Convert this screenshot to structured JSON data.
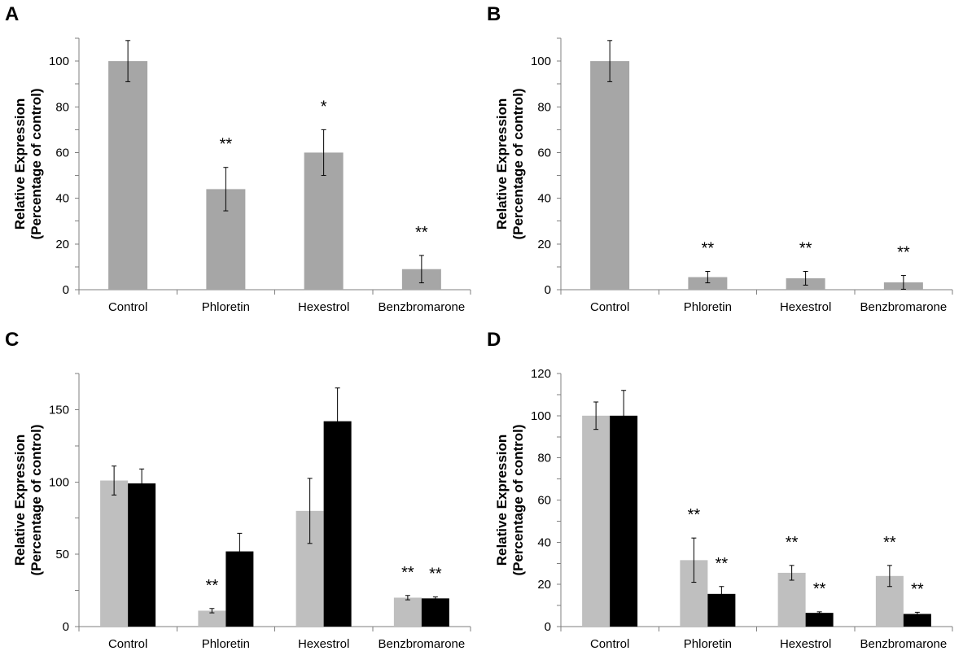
{
  "chart_data": [
    {
      "panel": "A",
      "type": "bar",
      "ylabel_line1": "Relative Expression",
      "ylabel_line2": "(Percentage of control)",
      "ylim": [
        0,
        110
      ],
      "yticks": [
        0,
        20,
        40,
        60,
        80,
        100
      ],
      "categories": [
        "Control",
        "Phloretin",
        "Hexestrol",
        "Benzbromarone"
      ],
      "series": [
        {
          "color": "#a6a6a6",
          "values": [
            100,
            44,
            60,
            9
          ],
          "errors": [
            9,
            9.5,
            10,
            6
          ],
          "significance": [
            "",
            "**",
            "*",
            "**"
          ]
        }
      ]
    },
    {
      "panel": "B",
      "type": "bar",
      "ylabel_line1": "Relative Expression",
      "ylabel_line2": "(Percentage of control)",
      "ylim": [
        0,
        110
      ],
      "yticks": [
        0,
        20,
        40,
        60,
        80,
        100
      ],
      "categories": [
        "Control",
        "Phloretin",
        "Hexestrol",
        "Benzbromarone"
      ],
      "series": [
        {
          "color": "#a6a6a6",
          "values": [
            100,
            5.5,
            5,
            3.2
          ],
          "errors": [
            9,
            2.5,
            3,
            3
          ],
          "significance": [
            "",
            "**",
            "**",
            "**"
          ]
        }
      ]
    },
    {
      "panel": "C",
      "type": "bar",
      "ylabel_line1": "Relative Expression",
      "ylabel_line2": "(Percentage of control)",
      "ylim": [
        0,
        175
      ],
      "yticks": [
        0,
        50,
        100,
        150
      ],
      "categories": [
        "Control",
        "Phloretin",
        "Hexestrol",
        "Benzbromarone"
      ],
      "series": [
        {
          "color": "#bfbfbf",
          "values": [
            101,
            11,
            80,
            20
          ],
          "errors": [
            10,
            1.5,
            22.5,
            1.5
          ],
          "significance": [
            "",
            "**",
            "",
            "**"
          ]
        },
        {
          "color": "#000000",
          "values": [
            99,
            52,
            142,
            19.5
          ],
          "errors": [
            10,
            12.5,
            23,
            1
          ],
          "significance": [
            "",
            "",
            "",
            "**"
          ]
        }
      ]
    },
    {
      "panel": "D",
      "type": "bar",
      "ylabel_line1": "Relative Expression",
      "ylabel_line2": "(Percentage of control)",
      "ylim": [
        0,
        120
      ],
      "yticks": [
        0,
        20,
        40,
        60,
        80,
        100,
        120
      ],
      "categories": [
        "Control",
        "Phloretin",
        "Hexestrol",
        "Benzbromarone"
      ],
      "series": [
        {
          "color": "#bfbfbf",
          "values": [
            100,
            31.5,
            25.5,
            24
          ],
          "errors": [
            6.5,
            10.5,
            3.5,
            5
          ],
          "significance": [
            "",
            "**",
            "**",
            "**"
          ]
        },
        {
          "color": "#000000",
          "values": [
            100,
            15.5,
            6.5,
            6
          ],
          "errors": [
            12,
            3.5,
            0.5,
            0.8
          ],
          "significance": [
            "",
            "**",
            "**",
            "**"
          ]
        }
      ]
    }
  ]
}
